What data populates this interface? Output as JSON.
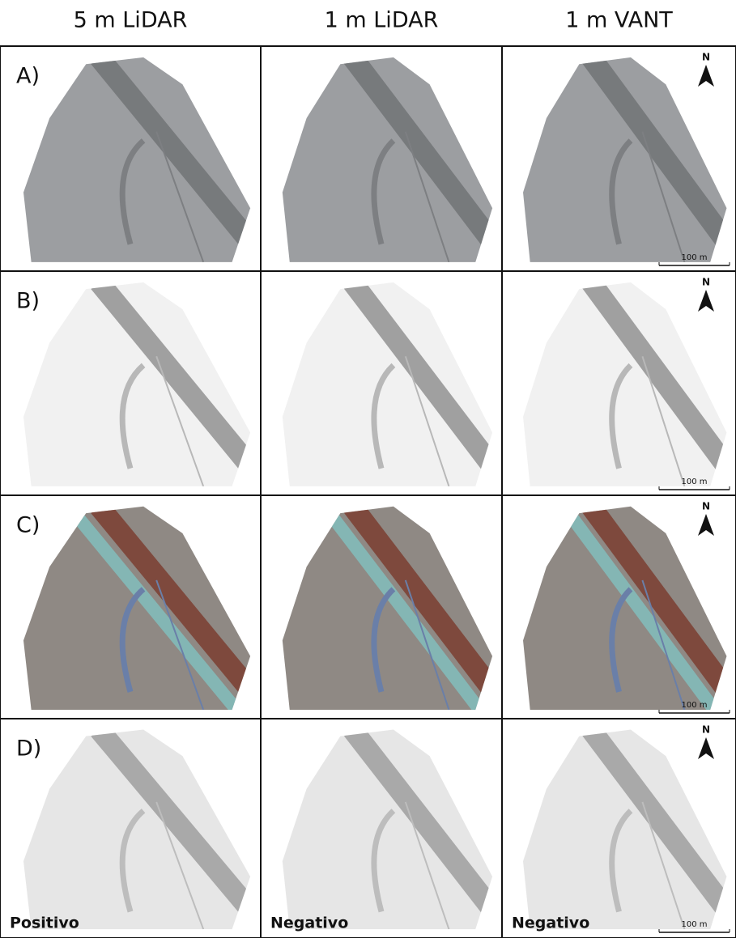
{
  "columns": [
    "5 m LiDAR",
    "1 m LiDAR",
    "1 m VANT"
  ],
  "rows": [
    "A)",
    "B)",
    "C)",
    "D)"
  ],
  "north_label": "N",
  "scale_label": "100 m",
  "bottom_labels": [
    "Positivo",
    "Negativo",
    "Negativo"
  ]
}
